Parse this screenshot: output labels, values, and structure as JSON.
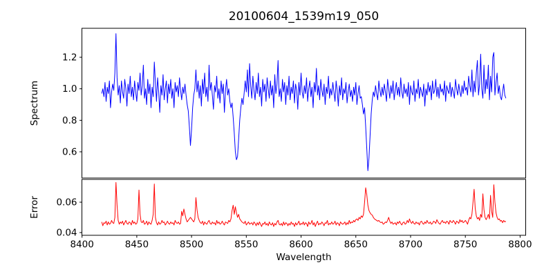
{
  "window": {
    "background": "#ffffff"
  },
  "chart_data": {
    "type": "line",
    "title": "20100604_1539m19_050",
    "xlabel": "Wavelength",
    "grid": false,
    "legend": false,
    "xlim": [
      8399.9,
      8805.1
    ],
    "x_ticks": {
      "values": [
        8400,
        8450,
        8500,
        8550,
        8600,
        8650,
        8700,
        8750,
        8800
      ],
      "labels": [
        "8400",
        "8450",
        "8500",
        "8550",
        "8600",
        "8650",
        "8700",
        "8750",
        "8800"
      ]
    },
    "x_start": 8418,
    "x_step": 1,
    "n_points": 370,
    "features": {
      "spectrum_emission_spike": {
        "wavelength": 8431,
        "peak": 1.35
      },
      "spectrum_absorption_dips": [
        {
          "wavelength": 8499,
          "depth": 0.64
        },
        {
          "wavelength": 8541,
          "depth": 0.55
        },
        {
          "wavelength": 8661,
          "depth": 0.48
        }
      ],
      "error_spikes": [
        {
          "wavelength": 8431,
          "peak": 0.073
        },
        {
          "wavelength": 8452,
          "peak": 0.068
        },
        {
          "wavelength": 8466,
          "peak": 0.072
        },
        {
          "wavelength": 8504,
          "peak": 0.063
        },
        {
          "wavelength": 8659,
          "peak": 0.0695
        },
        {
          "wavelength": 8758,
          "peak": 0.0685
        },
        {
          "wavelength": 8766,
          "peak": 0.0655
        },
        {
          "wavelength": 8776,
          "peak": 0.0715
        }
      ]
    },
    "subplots": [
      {
        "name": "spectrum",
        "ylabel": "Spectrum",
        "color": "#0000ff",
        "ylim": [
          0.4336,
          1.384
        ],
        "y_ticks": {
          "values": [
            0.6,
            0.8,
            1.0,
            1.2
          ],
          "labels": [
            "0.6",
            "0.8",
            "1.0",
            "1.2"
          ]
        },
        "values": [
          0.97,
          1.0,
          0.95,
          1.04,
          0.92,
          1.01,
          0.97,
          1.05,
          0.88,
          0.98,
          1.03,
          0.99,
          1.1,
          1.35,
          1.07,
          0.96,
          1.02,
          0.91,
          1.05,
          0.98,
          0.94,
          1.06,
          1.0,
          0.89,
          1.03,
          0.97,
          1.08,
          0.95,
          1.01,
          0.93,
          1.05,
          0.98,
          0.92,
          1.04,
          0.99,
          1.1,
          0.96,
          1.02,
          1.15,
          0.94,
          1.0,
          0.9,
          1.06,
          0.97,
          1.03,
          0.88,
          1.01,
          0.95,
          1.17,
          1.04,
          0.92,
          1.07,
          0.98,
          0.85,
          1.02,
          0.96,
          1.09,
          0.93,
          1.0,
          1.05,
          0.91,
          1.03,
          0.97,
          1.06,
          0.94,
          1.0,
          0.88,
          1.04,
          0.98,
          1.02,
          0.95,
          1.07,
          0.99,
          0.93,
          1.01,
          0.97,
          1.03,
          0.96,
          0.9,
          0.86,
          0.76,
          0.64,
          0.74,
          0.88,
          0.96,
          1.0,
          1.12,
          0.98,
          1.05,
          0.94,
          1.02,
          0.89,
          1.06,
          0.97,
          1.1,
          0.95,
          1.01,
          0.92,
          1.15,
          0.99,
          1.04,
          0.96,
          0.87,
          1.02,
          0.98,
          1.08,
          0.94,
          1.0,
          0.91,
          1.05,
          0.97,
          1.03,
          0.85,
          0.99,
          1.06,
          0.96,
          1.0,
          0.92,
          0.88,
          0.91,
          0.82,
          0.72,
          0.6,
          0.55,
          0.57,
          0.68,
          0.8,
          0.88,
          0.94,
          0.9,
          0.97,
          1.05,
          0.98,
          1.12,
          0.95,
          1.16,
          1.02,
          0.94,
          1.08,
          0.99,
          0.93,
          1.04,
          0.97,
          1.1,
          0.95,
          1.01,
          0.89,
          1.06,
          0.98,
          1.03,
          0.92,
          1.07,
          1.0,
          0.94,
          1.05,
          0.96,
          1.02,
          0.88,
          1.09,
          0.97,
          1.03,
          1.18,
          0.95,
          1.0,
          0.92,
          1.06,
          0.98,
          1.04,
          0.9,
          1.02,
          0.96,
          1.08,
          0.93,
          1.01,
          0.97,
          1.05,
          0.91,
          1.03,
          0.99,
          0.87,
          1.04,
          0.96,
          1.1,
          0.98,
          0.94,
          1.02,
          0.97,
          1.07,
          0.92,
          1.0,
          1.05,
          0.95,
          1.01,
          0.88,
          1.04,
          0.98,
          1.13,
          0.96,
          1.02,
          0.93,
          1.06,
          0.99,
          0.95,
          1.03,
          0.9,
          1.01,
          0.97,
          1.08,
          0.94,
          1.0,
          0.96,
          1.04,
          0.98,
          0.92,
          1.05,
          0.99,
          0.89,
          1.02,
          0.96,
          1.07,
          0.93,
          1.0,
          0.97,
          1.04,
          0.91,
          0.98,
          1.03,
          0.95,
          0.99,
          0.92,
          1.01,
          0.96,
          1.04,
          0.9,
          0.97,
          1.02,
          0.94,
          0.95,
          0.9,
          0.84,
          0.88,
          0.76,
          0.62,
          0.48,
          0.56,
          0.7,
          0.84,
          0.93,
          0.98,
          0.95,
          1.02,
          0.97,
          0.93,
          1.05,
          0.99,
          0.95,
          1.01,
          0.96,
          1.03,
          0.98,
          0.92,
          1.06,
          1.0,
          0.94,
          1.02,
          0.97,
          1.05,
          0.93,
          0.99,
          1.04,
          0.96,
          1.01,
          0.95,
          1.07,
          0.98,
          0.94,
          1.03,
          0.97,
          1.0,
          0.95,
          1.04,
          0.9,
          1.02,
          0.98,
          0.96,
          1.05,
          0.92,
          1.0,
          0.97,
          1.06,
          0.94,
          1.01,
          0.98,
          0.95,
          1.03,
          0.89,
          1.0,
          0.96,
          1.04,
          0.98,
          1.02,
          0.93,
          1.05,
          0.97,
          0.99,
          1.06,
          0.95,
          1.01,
          0.94,
          1.03,
          0.98,
          1.0,
          0.96,
          1.05,
          0.92,
          1.02,
          0.99,
          0.97,
          1.04,
          0.95,
          1.01,
          0.98,
          0.94,
          1.06,
          1.0,
          0.96,
          1.03,
          0.98,
          0.95,
          1.02,
          0.97,
          1.05,
          0.99,
          1.01,
          0.96,
          1.08,
          1.02,
          0.98,
          1.12,
          0.95,
          1.05,
          0.98,
          1.1,
          1.18,
          0.96,
          1.03,
          1.22,
          1.0,
          0.94,
          1.15,
          0.97,
          1.06,
          1.0,
          1.15,
          0.93,
          1.08,
          0.98,
          1.2,
          1.23,
          0.96,
          1.04,
          1.1,
          0.97,
          1.02,
          0.95,
          0.93,
          0.98,
          1.03,
          0.96,
          0.94
        ]
      },
      {
        "name": "error",
        "ylabel": "Error",
        "color": "#ff0000",
        "ylim": [
          0.0382,
          0.075
        ],
        "y_ticks": {
          "values": [
            0.04,
            0.06
          ],
          "labels": [
            "0.04",
            "0.06"
          ]
        },
        "values": [
          0.047,
          0.0445,
          0.0465,
          0.046,
          0.0475,
          0.045,
          0.047,
          0.0455,
          0.046,
          0.048,
          0.0465,
          0.046,
          0.05,
          0.073,
          0.058,
          0.048,
          0.0455,
          0.047,
          0.046,
          0.0475,
          0.045,
          0.0465,
          0.048,
          0.046,
          0.0455,
          0.047,
          0.0465,
          0.045,
          0.048,
          0.046,
          0.047,
          0.0455,
          0.046,
          0.049,
          0.068,
          0.052,
          0.047,
          0.0465,
          0.048,
          0.0455,
          0.046,
          0.0475,
          0.045,
          0.047,
          0.046,
          0.0455,
          0.048,
          0.052,
          0.072,
          0.05,
          0.0465,
          0.045,
          0.047,
          0.0455,
          0.046,
          0.048,
          0.0465,
          0.047,
          0.045,
          0.046,
          0.0475,
          0.046,
          0.0455,
          0.047,
          0.046,
          0.0465,
          0.045,
          0.048,
          0.0465,
          0.046,
          0.047,
          0.0455,
          0.046,
          0.054,
          0.051,
          0.0555,
          0.052,
          0.049,
          0.047,
          0.048,
          0.049,
          0.05,
          0.049,
          0.048,
          0.047,
          0.049,
          0.063,
          0.055,
          0.05,
          0.048,
          0.0465,
          0.046,
          0.0475,
          0.045,
          0.047,
          0.046,
          0.0455,
          0.047,
          0.048,
          0.046,
          0.0455,
          0.047,
          0.046,
          0.0465,
          0.045,
          0.048,
          0.046,
          0.047,
          0.0455,
          0.046,
          0.0475,
          0.046,
          0.045,
          0.047,
          0.0465,
          0.046,
          0.048,
          0.047,
          0.049,
          0.0545,
          0.058,
          0.052,
          0.057,
          0.053,
          0.05,
          0.052,
          0.049,
          0.048,
          0.047,
          0.0465,
          0.046,
          0.0475,
          0.045,
          0.046,
          0.047,
          0.0455,
          0.046,
          0.0465,
          0.045,
          0.047,
          0.046,
          0.0445,
          0.0465,
          0.045,
          0.047,
          0.0455,
          0.044,
          0.046,
          0.0455,
          0.047,
          0.045,
          0.046,
          0.0445,
          0.047,
          0.0455,
          0.045,
          0.0465,
          0.044,
          0.046,
          0.045,
          0.047,
          0.048,
          0.0455,
          0.045,
          0.046,
          0.0445,
          0.047,
          0.045,
          0.0465,
          0.046,
          0.0445,
          0.046,
          0.045,
          0.047,
          0.0455,
          0.046,
          0.044,
          0.0465,
          0.045,
          0.046,
          0.0475,
          0.045,
          0.046,
          0.0455,
          0.047,
          0.045,
          0.0465,
          0.046,
          0.044,
          0.047,
          0.0455,
          0.046,
          0.048,
          0.045,
          0.0465,
          0.044,
          0.046,
          0.0475,
          0.045,
          0.046,
          0.0455,
          0.047,
          0.046,
          0.0445,
          0.0465,
          0.046,
          0.048,
          0.045,
          0.046,
          0.0455,
          0.047,
          0.0455,
          0.046,
          0.0475,
          0.045,
          0.0465,
          0.046,
          0.0445,
          0.047,
          0.046,
          0.0455,
          0.046,
          0.047,
          0.045,
          0.0465,
          0.0455,
          0.048,
          0.046,
          0.047,
          0.0465,
          0.048,
          0.047,
          0.0485,
          0.049,
          0.048,
          0.05,
          0.049,
          0.051,
          0.05,
          0.052,
          0.06,
          0.0695,
          0.065,
          0.058,
          0.0545,
          0.053,
          0.052,
          0.0515,
          0.05,
          0.049,
          0.0485,
          0.048,
          0.0475,
          0.048,
          0.047,
          0.0465,
          0.047,
          0.0455,
          0.046,
          0.047,
          0.0465,
          0.048,
          0.05,
          0.0475,
          0.046,
          0.047,
          0.0455,
          0.046,
          0.0465,
          0.045,
          0.047,
          0.046,
          0.0475,
          0.046,
          0.045,
          0.0465,
          0.047,
          0.0455,
          0.046,
          0.048,
          0.0465,
          0.049,
          0.047,
          0.046,
          0.0475,
          0.046,
          0.0455,
          0.047,
          0.046,
          0.0465,
          0.045,
          0.047,
          0.0475,
          0.046,
          0.0455,
          0.047,
          0.046,
          0.048,
          0.0465,
          0.046,
          0.047,
          0.0455,
          0.046,
          0.0475,
          0.047,
          0.046,
          0.0485,
          0.047,
          0.046,
          0.0455,
          0.047,
          0.048,
          0.0465,
          0.047,
          0.046,
          0.0475,
          0.047,
          0.0455,
          0.048,
          0.047,
          0.0465,
          0.048,
          0.047,
          0.0455,
          0.0475,
          0.047,
          0.046,
          0.0485,
          0.047,
          0.048,
          0.0465,
          0.047,
          0.048,
          0.047,
          0.0455,
          0.048,
          0.05,
          0.049,
          0.052,
          0.06,
          0.0685,
          0.056,
          0.051,
          0.049,
          0.05,
          0.048,
          0.052,
          0.05,
          0.0655,
          0.055,
          0.05,
          0.0485,
          0.05,
          0.052,
          0.049,
          0.0645,
          0.054,
          0.05,
          0.0715,
          0.06,
          0.053,
          0.05,
          0.0485,
          0.049,
          0.0475,
          0.048,
          0.0465,
          0.048,
          0.047,
          0.0475
        ]
      }
    ]
  }
}
